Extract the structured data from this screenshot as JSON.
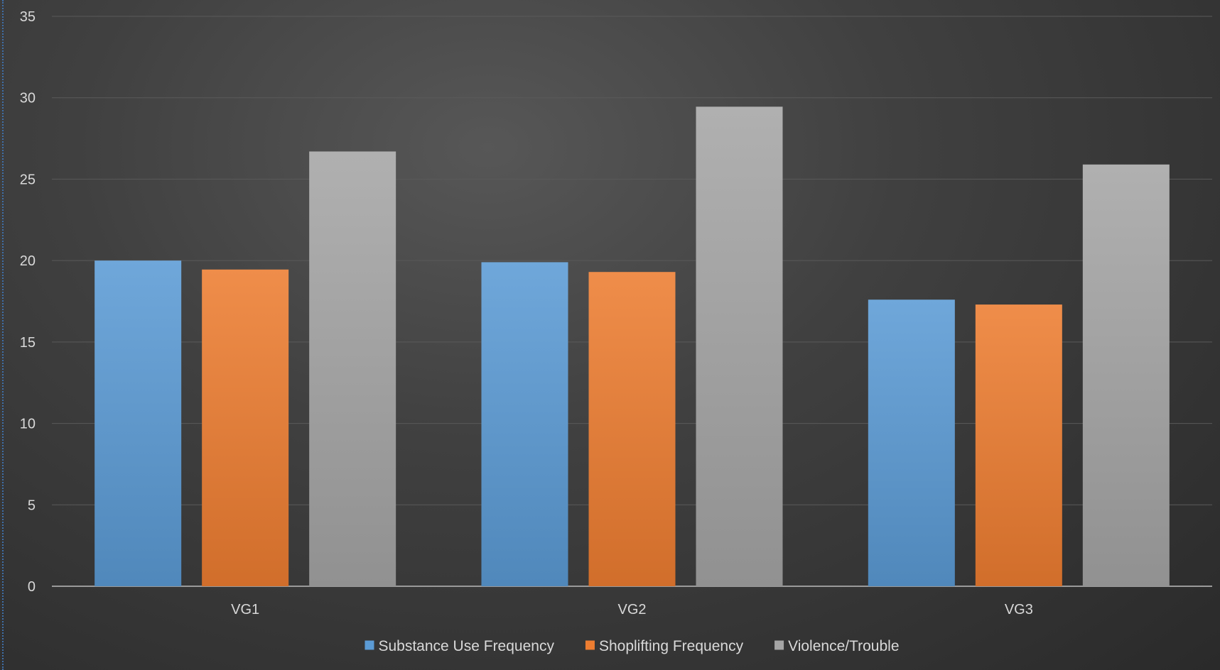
{
  "chart_data": {
    "type": "bar",
    "categories": [
      "VG1",
      "VG2",
      "VG3"
    ],
    "series": [
      {
        "name": "Substance Use Frequency",
        "values": [
          20.0,
          19.9,
          17.6
        ],
        "color": "#5b9bd5"
      },
      {
        "name": "Shoplifting Frequency",
        "values": [
          19.45,
          19.3,
          17.3
        ],
        "color": "#ed7d31"
      },
      {
        "name": "Violence/Trouble",
        "values": [
          26.7,
          29.45,
          25.9
        ],
        "color": "#a5a5a5"
      }
    ],
    "ylim": [
      0,
      35
    ],
    "yticks": [
      0,
      5,
      10,
      15,
      20,
      25,
      30,
      35
    ],
    "grid": true,
    "legend_position": "bottom",
    "title": "",
    "xlabel": "",
    "ylabel": ""
  }
}
